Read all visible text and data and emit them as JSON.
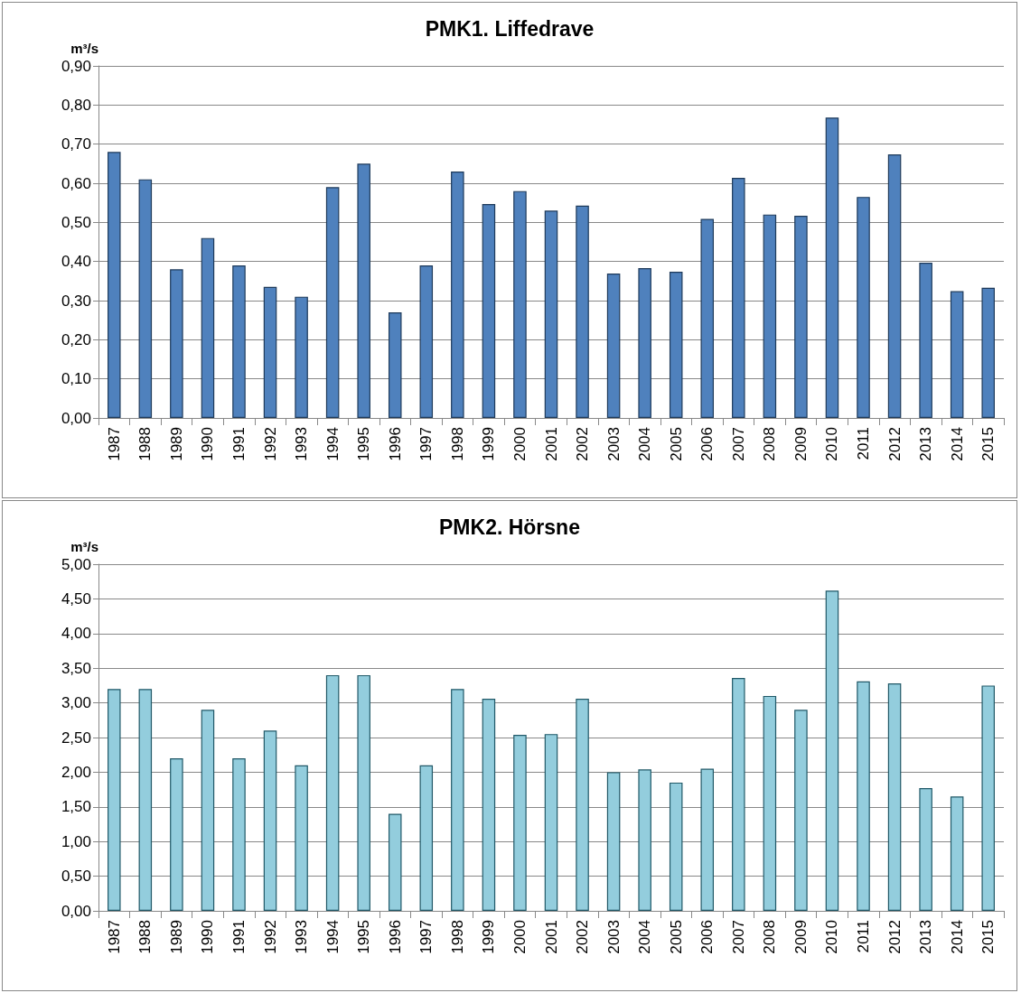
{
  "chart_data": [
    {
      "type": "bar",
      "title": "PMK1. Liffedrave",
      "ylabel": "m³/s",
      "categories": [
        "1987",
        "1988",
        "1989",
        "1990",
        "1991",
        "1992",
        "1993",
        "1994",
        "1995",
        "1996",
        "1997",
        "1998",
        "1999",
        "2000",
        "2001",
        "2002",
        "2003",
        "2004",
        "2005",
        "2006",
        "2007",
        "2008",
        "2009",
        "2010",
        "2011",
        "2012",
        "2013",
        "2014",
        "2015"
      ],
      "values": [
        0.68,
        0.61,
        0.38,
        0.46,
        0.39,
        0.335,
        0.31,
        0.59,
        0.65,
        0.27,
        0.39,
        0.63,
        0.547,
        0.58,
        0.53,
        0.543,
        0.369,
        0.383,
        0.374,
        0.509,
        0.614,
        0.52,
        0.517,
        0.768,
        0.565,
        0.674,
        0.397,
        0.324,
        0.333
      ],
      "color": "#4f81bd",
      "ylim": [
        0,
        0.9
      ],
      "yticks": [
        {
          "value": 0,
          "label": "0,00"
        },
        {
          "value": 0.1,
          "label": "0,10"
        },
        {
          "value": 0.2,
          "label": "0,20"
        },
        {
          "value": 0.3,
          "label": "0,30"
        },
        {
          "value": 0.4,
          "label": "0,40"
        },
        {
          "value": 0.5,
          "label": "0,50"
        },
        {
          "value": 0.6,
          "label": "0,60"
        },
        {
          "value": 0.7,
          "label": "0,70"
        },
        {
          "value": 0.8,
          "label": "0,80"
        },
        {
          "value": 0.9,
          "label": "0,90"
        }
      ],
      "grid": "y"
    },
    {
      "type": "bar",
      "title": "PMK2. Hörsne",
      "ylabel": "m³/s",
      "categories": [
        "1987",
        "1988",
        "1989",
        "1990",
        "1991",
        "1992",
        "1993",
        "1994",
        "1995",
        "1996",
        "1997",
        "1998",
        "1999",
        "2000",
        "2001",
        "2002",
        "2003",
        "2004",
        "2005",
        "2006",
        "2007",
        "2008",
        "2009",
        "2010",
        "2011",
        "2012",
        "2013",
        "2014",
        "2015"
      ],
      "values": [
        3.2,
        3.2,
        2.2,
        2.9,
        2.2,
        2.6,
        2.1,
        3.4,
        3.4,
        1.4,
        2.1,
        3.2,
        3.06,
        2.54,
        2.55,
        3.06,
        2.0,
        2.04,
        1.85,
        2.05,
        3.36,
        3.1,
        2.9,
        4.62,
        3.31,
        3.28,
        1.77,
        1.65,
        3.25
      ],
      "color": "#93cddd",
      "ylim": [
        0,
        5
      ],
      "yticks": [
        {
          "value": 0,
          "label": "0,00"
        },
        {
          "value": 0.5,
          "label": "0,50"
        },
        {
          "value": 1,
          "label": "1,00"
        },
        {
          "value": 1.5,
          "label": "1,50"
        },
        {
          "value": 2,
          "label": "2,00"
        },
        {
          "value": 2.5,
          "label": "2,50"
        },
        {
          "value": 3,
          "label": "3,00"
        },
        {
          "value": 3.5,
          "label": "3,50"
        },
        {
          "value": 4,
          "label": "4,00"
        },
        {
          "value": 4.5,
          "label": "4,50"
        },
        {
          "value": 5,
          "label": "5,00"
        }
      ],
      "grid": "y"
    }
  ]
}
